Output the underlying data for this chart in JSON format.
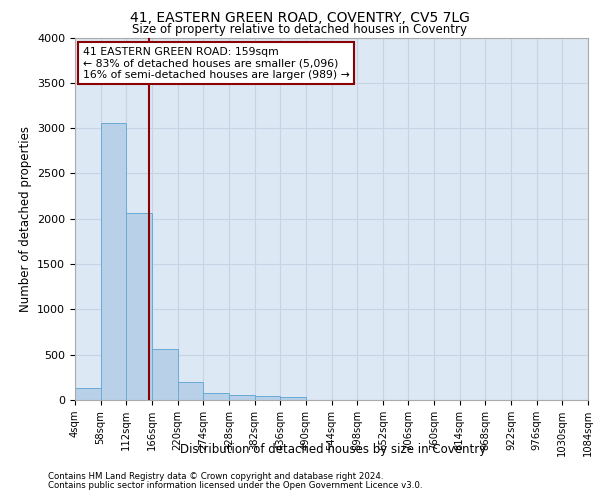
{
  "title_line1": "41, EASTERN GREEN ROAD, COVENTRY, CV5 7LG",
  "title_line2": "Size of property relative to detached houses in Coventry",
  "xlabel": "Distribution of detached houses by size in Coventry",
  "ylabel": "Number of detached properties",
  "footer_line1": "Contains HM Land Registry data © Crown copyright and database right 2024.",
  "footer_line2": "Contains public sector information licensed under the Open Government Licence v3.0.",
  "annotation_line1": "41 EASTERN GREEN ROAD: 159sqm",
  "annotation_line2": "← 83% of detached houses are smaller (5,096)",
  "annotation_line3": "16% of semi-detached houses are larger (989) →",
  "bin_edges": [
    4,
    58,
    112,
    166,
    220,
    274,
    328,
    382,
    436,
    490,
    544,
    598,
    652,
    706,
    760,
    814,
    868,
    922,
    976,
    1030,
    1084
  ],
  "bar_heights": [
    130,
    3060,
    2060,
    560,
    200,
    80,
    60,
    45,
    35,
    0,
    0,
    0,
    0,
    0,
    0,
    0,
    0,
    0,
    0,
    0
  ],
  "bar_color": "#b8d0e8",
  "bar_edgecolor": "#6aaad4",
  "vline_x": 159,
  "vline_color": "#8b0000",
  "ylim": [
    0,
    4000
  ],
  "yticks": [
    0,
    500,
    1000,
    1500,
    2000,
    2500,
    3000,
    3500,
    4000
  ],
  "grid_color": "#c8d4e4",
  "bg_color": "#dce8f4",
  "annotation_box_edgecolor": "#8b0000",
  "annotation_box_facecolor": "#ffffff"
}
